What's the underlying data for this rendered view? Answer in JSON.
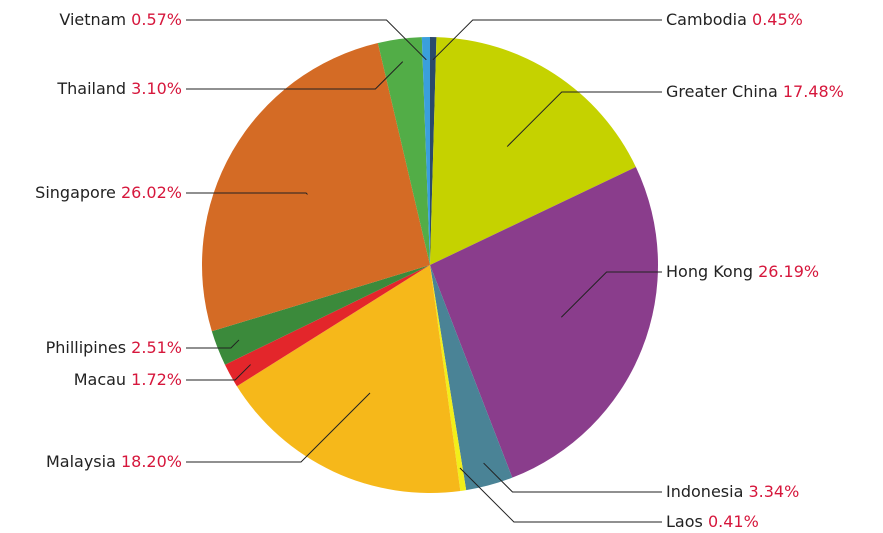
{
  "chart_data": {
    "type": "pie",
    "categories": [
      "Cambodia",
      "Greater China",
      "Hong Kong",
      "Indonesia",
      "Laos",
      "Malaysia",
      "Macau",
      "Phillipines",
      "Singapore",
      "Thailand",
      "Vietnam"
    ],
    "values": [
      0.45,
      17.48,
      26.19,
      3.34,
      0.41,
      18.2,
      1.72,
      2.51,
      26.02,
      3.1,
      0.57
    ],
    "value_labels": [
      "0.45%",
      "17.48%",
      "26.19%",
      "3.34%",
      "0.41%",
      "18.20%",
      "1.72%",
      "2.51%",
      "26.02%",
      "3.10%",
      "0.57%"
    ],
    "colors": [
      "#2b4a6b",
      "#c5d200",
      "#8a3d8c",
      "#4a8396",
      "#f2ee1a",
      "#f6b81a",
      "#e3262b",
      "#3b8a3b",
      "#d46b25",
      "#52ad47",
      "#3a9fdc"
    ]
  }
}
